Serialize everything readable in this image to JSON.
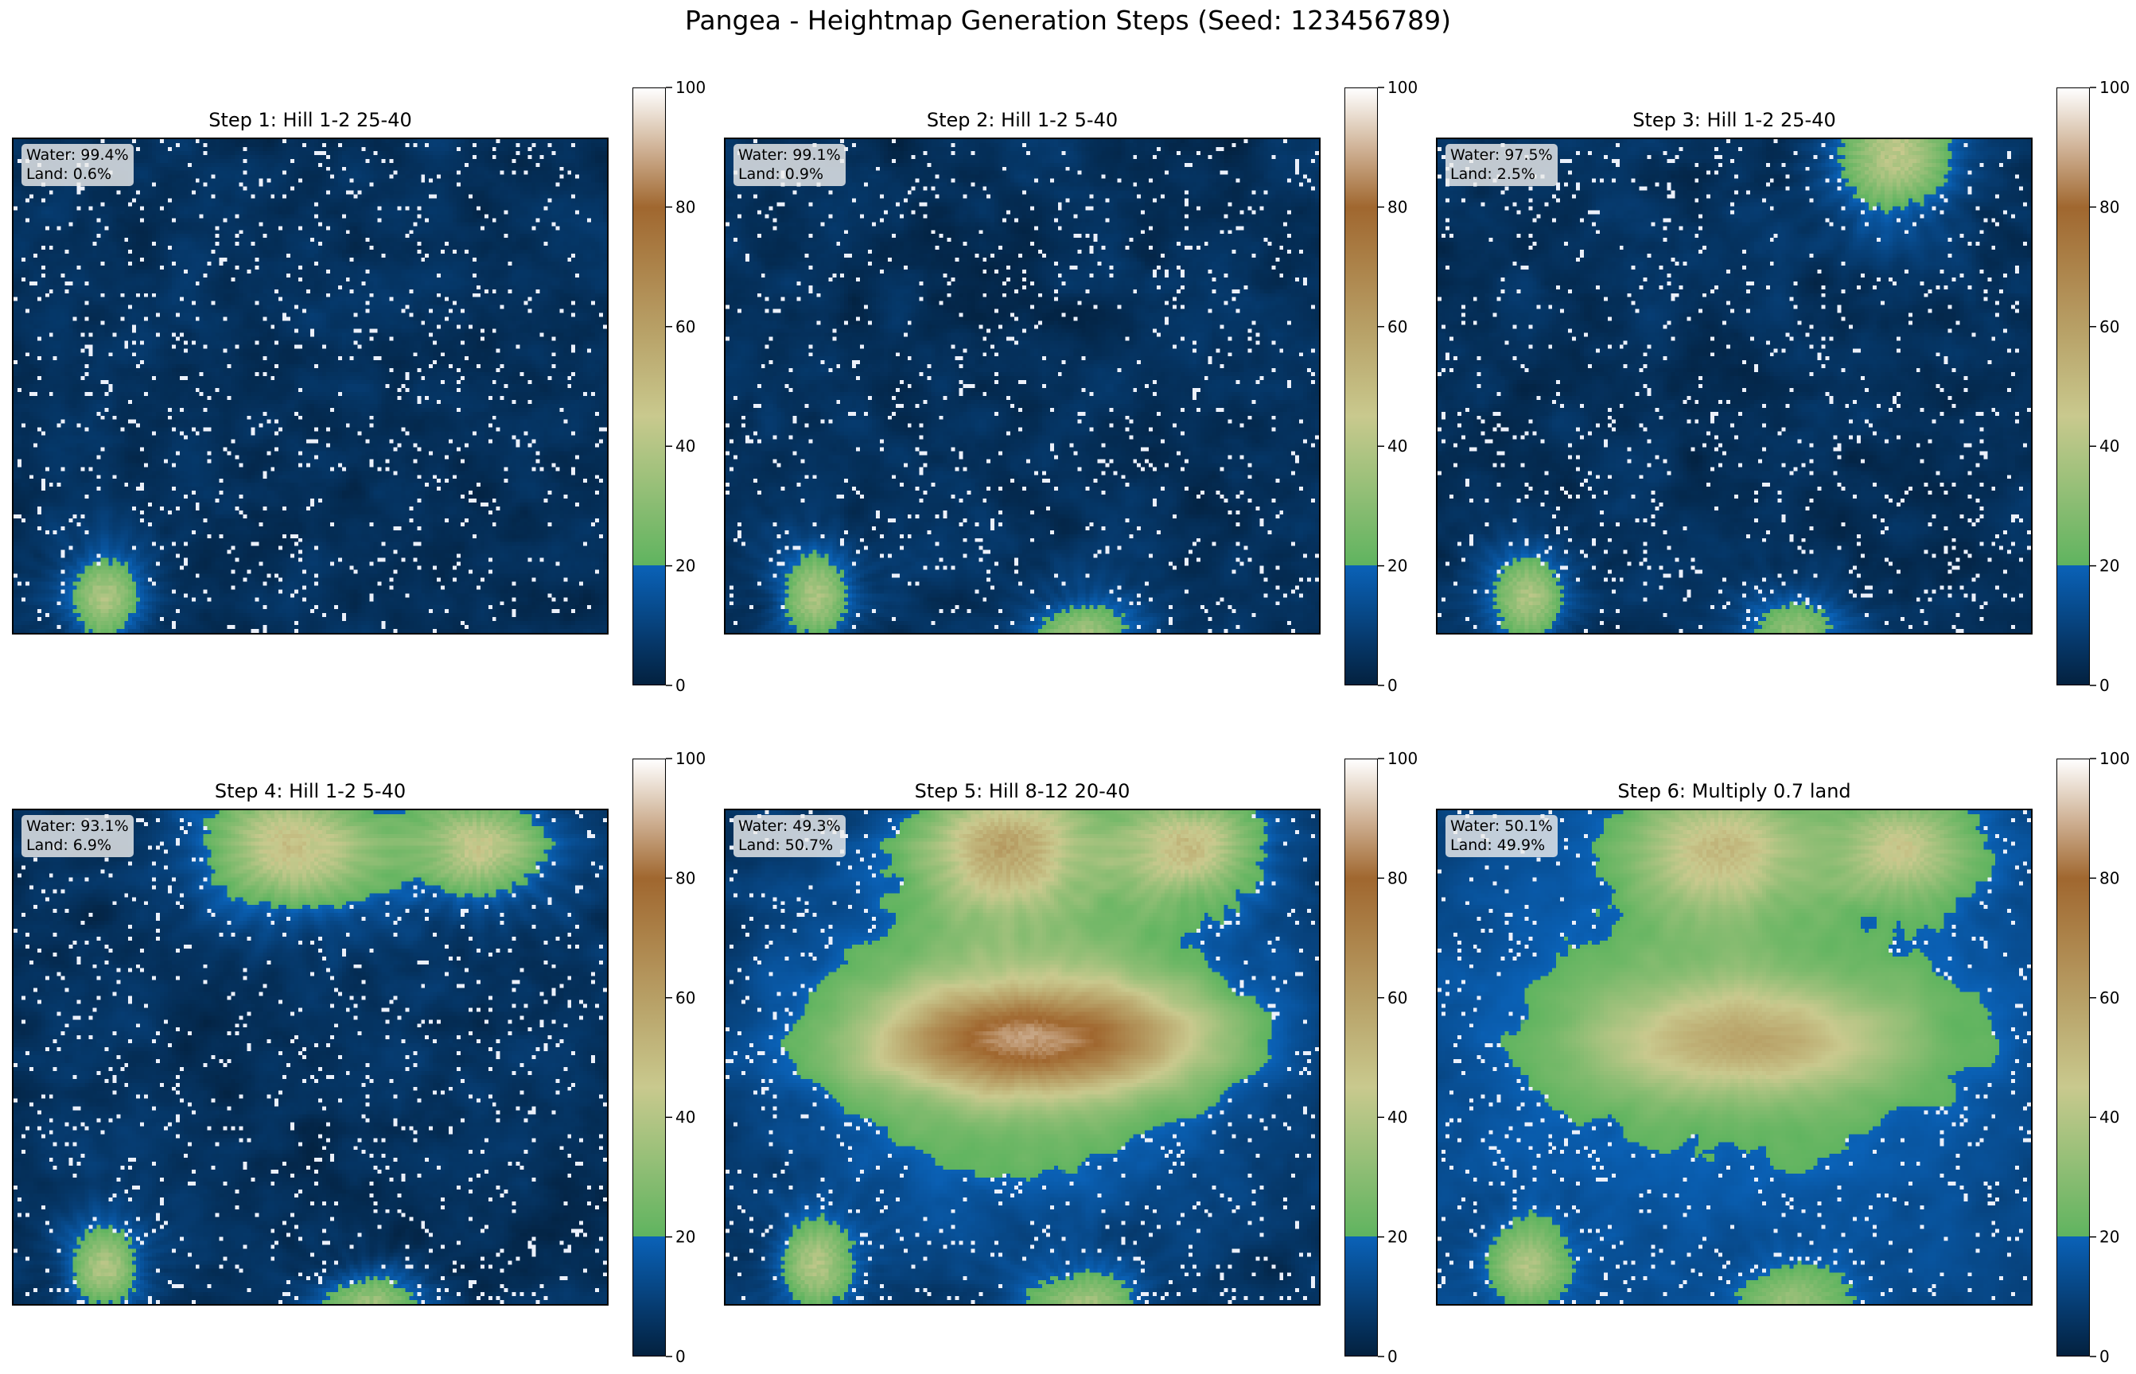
{
  "title": "Pangea - Heightmap Generation Steps (Seed: 123456789)",
  "water_label": "Water: ",
  "land_label": "Land: ",
  "colors": {
    "deep_water": "#03213f",
    "shallow_water": "#0a62b8",
    "low_land": "#5fb45f",
    "mid_land": "#c9c98e",
    "high_land": "#a0672f",
    "peak": "#ffffff"
  },
  "colorbar": {
    "ticks": [
      "0",
      "20",
      "40",
      "60",
      "80",
      "100"
    ],
    "range": [
      0,
      100
    ],
    "sea_level": 20
  },
  "chart_data": [
    {
      "type": "heatmap",
      "title": "Step 1: Hill 1-2 25-40",
      "water": "99.4%",
      "land": "0.6%",
      "water_pct": 99.4,
      "land_pct": 0.6,
      "colorbar_range": [
        0,
        100
      ]
    },
    {
      "type": "heatmap",
      "title": "Step 2: Hill 1-2 5-40",
      "water": "99.1%",
      "land": "0.9%",
      "water_pct": 99.1,
      "land_pct": 0.9,
      "colorbar_range": [
        0,
        100
      ]
    },
    {
      "type": "heatmap",
      "title": "Step 3: Hill 1-2 25-40",
      "water": "97.5%",
      "land": "2.5%",
      "water_pct": 97.5,
      "land_pct": 2.5,
      "colorbar_range": [
        0,
        100
      ]
    },
    {
      "type": "heatmap",
      "title": "Step 4: Hill 1-2 5-40",
      "water": "93.1%",
      "land": "6.9%",
      "water_pct": 93.1,
      "land_pct": 6.9,
      "colorbar_range": [
        0,
        100
      ]
    },
    {
      "type": "heatmap",
      "title": "Step 5: Hill 8-12 20-40",
      "water": "49.3%",
      "land": "50.7%",
      "water_pct": 49.3,
      "land_pct": 50.7,
      "colorbar_range": [
        0,
        100
      ]
    },
    {
      "type": "heatmap",
      "title": "Step 6: Multiply 0.7 land",
      "water": "50.1%",
      "land": "49.9%",
      "water_pct": 50.1,
      "land_pct": 49.9,
      "colorbar_range": [
        0,
        100
      ]
    }
  ]
}
